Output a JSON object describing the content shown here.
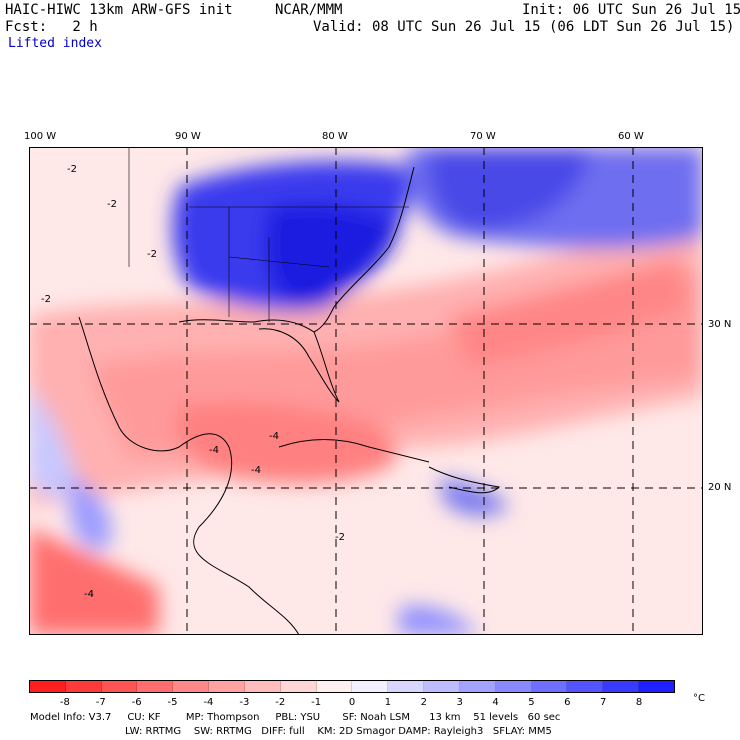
{
  "header": {
    "model": "HAIC-HIWC 13km ARW-GFS init",
    "center": "NCAR/MMM",
    "init": "Init: 06 UTC Sun 26 Jul 15",
    "fcst": "Fcst:   2 h",
    "valid": "Valid: 08 UTC Sun 26 Jul 15 (06 LDT Sun 26 Jul 15)",
    "field": "Lifted index"
  },
  "map": {
    "lon_labels": [
      "100 W",
      "90 W",
      "80 W",
      "70 W",
      "60 W"
    ],
    "lat_labels": [
      "30 N",
      "20 N"
    ],
    "contour_labels": [
      "-2",
      "-2",
      "-2",
      "-2",
      "-4",
      "-4",
      "-4",
      "-4",
      "-2"
    ]
  },
  "colorbar": {
    "labels": [
      "-8",
      "-7",
      "-6",
      "-5",
      "-4",
      "-3",
      "-2",
      "-1",
      "0",
      "1",
      "2",
      "3",
      "4",
      "5",
      "6",
      "7",
      "8"
    ],
    "unit": "°C",
    "colors": [
      "#ff1f1f",
      "#ff3a3a",
      "#ff5454",
      "#ff6e6e",
      "#ff8888",
      "#ffa2a2",
      "#ffbcbc",
      "#ffd6d6",
      "#fff0f0",
      "#f0f0ff",
      "#d6d6ff",
      "#bcbcff",
      "#a2a2ff",
      "#8888ff",
      "#6e6eff",
      "#5454ff",
      "#3a3aff",
      "#1f1fff"
    ]
  },
  "footer": {
    "line1": "Model Info: V3.7     CU: KF        MP: Thompson     PBL: YSU       SF: Noah LSM      13 km    51 levels   60 sec",
    "line2": "LW: RRTMG    SW: RRTMG   DIFF: full    KM: 2D Smagor DAMP: Rayleigh3   SFLAY: MM5"
  }
}
